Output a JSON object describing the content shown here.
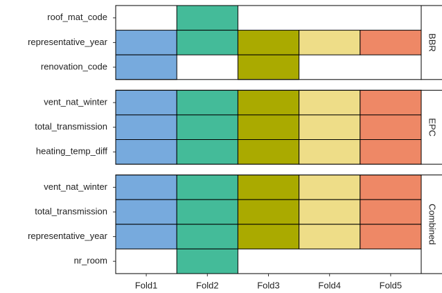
{
  "chart_data": {
    "type": "tile",
    "categories": [
      "Fold1",
      "Fold2",
      "Fold3",
      "Fold4",
      "Fold5"
    ],
    "colors": [
      "#77aadd",
      "#44bb99",
      "#aaaa00",
      "#eedd88",
      "#ee8866"
    ],
    "panels": [
      {
        "name": "BBR",
        "rows": [
          "roof_mat_code",
          "representative_year",
          "renovation_code"
        ],
        "values": [
          [
            0,
            1,
            0,
            0,
            0
          ],
          [
            1,
            1,
            1,
            1,
            1
          ],
          [
            1,
            0,
            1,
            0,
            0
          ]
        ]
      },
      {
        "name": "EPC",
        "rows": [
          "vent_nat_winter",
          "total_transmission",
          "heating_temp_diff"
        ],
        "values": [
          [
            1,
            1,
            1,
            1,
            1
          ],
          [
            1,
            1,
            1,
            1,
            1
          ],
          [
            1,
            1,
            1,
            1,
            1
          ]
        ]
      },
      {
        "name": "Combined",
        "rows": [
          "vent_nat_winter",
          "total_transmission",
          "representative_year",
          "nr_room"
        ],
        "values": [
          [
            1,
            1,
            1,
            1,
            1
          ],
          [
            1,
            1,
            1,
            1,
            1
          ],
          [
            1,
            1,
            1,
            1,
            1
          ],
          [
            0,
            1,
            0,
            0,
            0
          ]
        ]
      }
    ]
  }
}
